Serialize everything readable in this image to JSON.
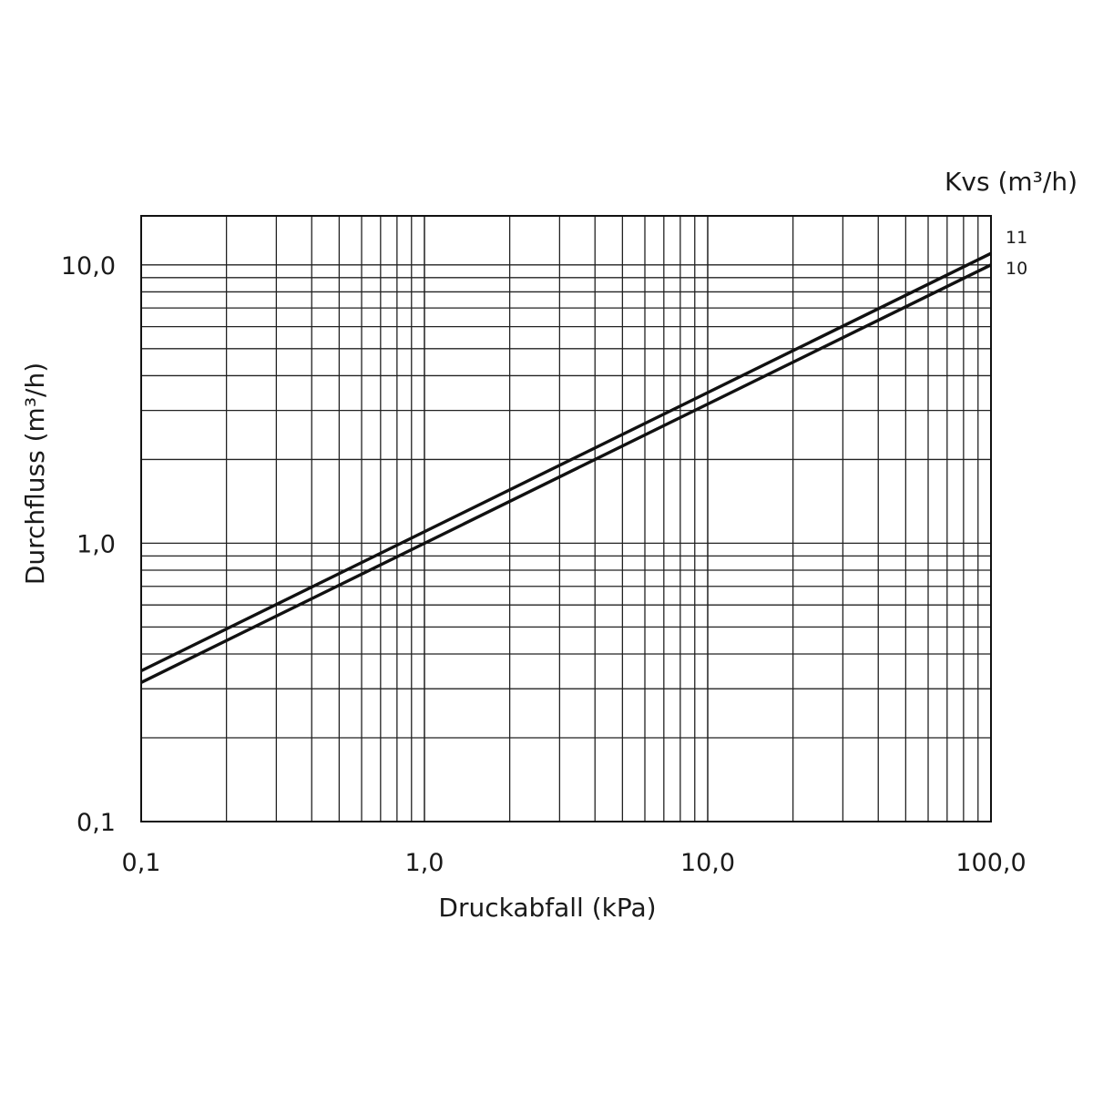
{
  "chart_data": {
    "type": "line",
    "xlabel": "Druckabfall (kPa)",
    "ylabel": "Durchfluss (m³/h)",
    "series_header": "Kvs (m³/h)",
    "x_scale": "log",
    "y_scale": "log",
    "xlim": [
      0.1,
      100
    ],
    "ylim": [
      0.1,
      15
    ],
    "grid": true,
    "x_ticks": [
      {
        "value": 0.1,
        "label": "0,1"
      },
      {
        "value": 1,
        "label": "1,0"
      },
      {
        "value": 10,
        "label": "10,0"
      },
      {
        "value": 100,
        "label": "100,0"
      }
    ],
    "y_ticks": [
      {
        "value": 0.1,
        "label": "0,1"
      },
      {
        "value": 1,
        "label": "1,0"
      },
      {
        "value": 10,
        "label": "10,0"
      }
    ],
    "series": [
      {
        "name": "11",
        "x": [
          0.1,
          100
        ],
        "y": [
          0.348,
          11.0
        ]
      },
      {
        "name": "10",
        "x": [
          0.1,
          100
        ],
        "y": [
          0.316,
          10.0
        ]
      }
    ]
  }
}
